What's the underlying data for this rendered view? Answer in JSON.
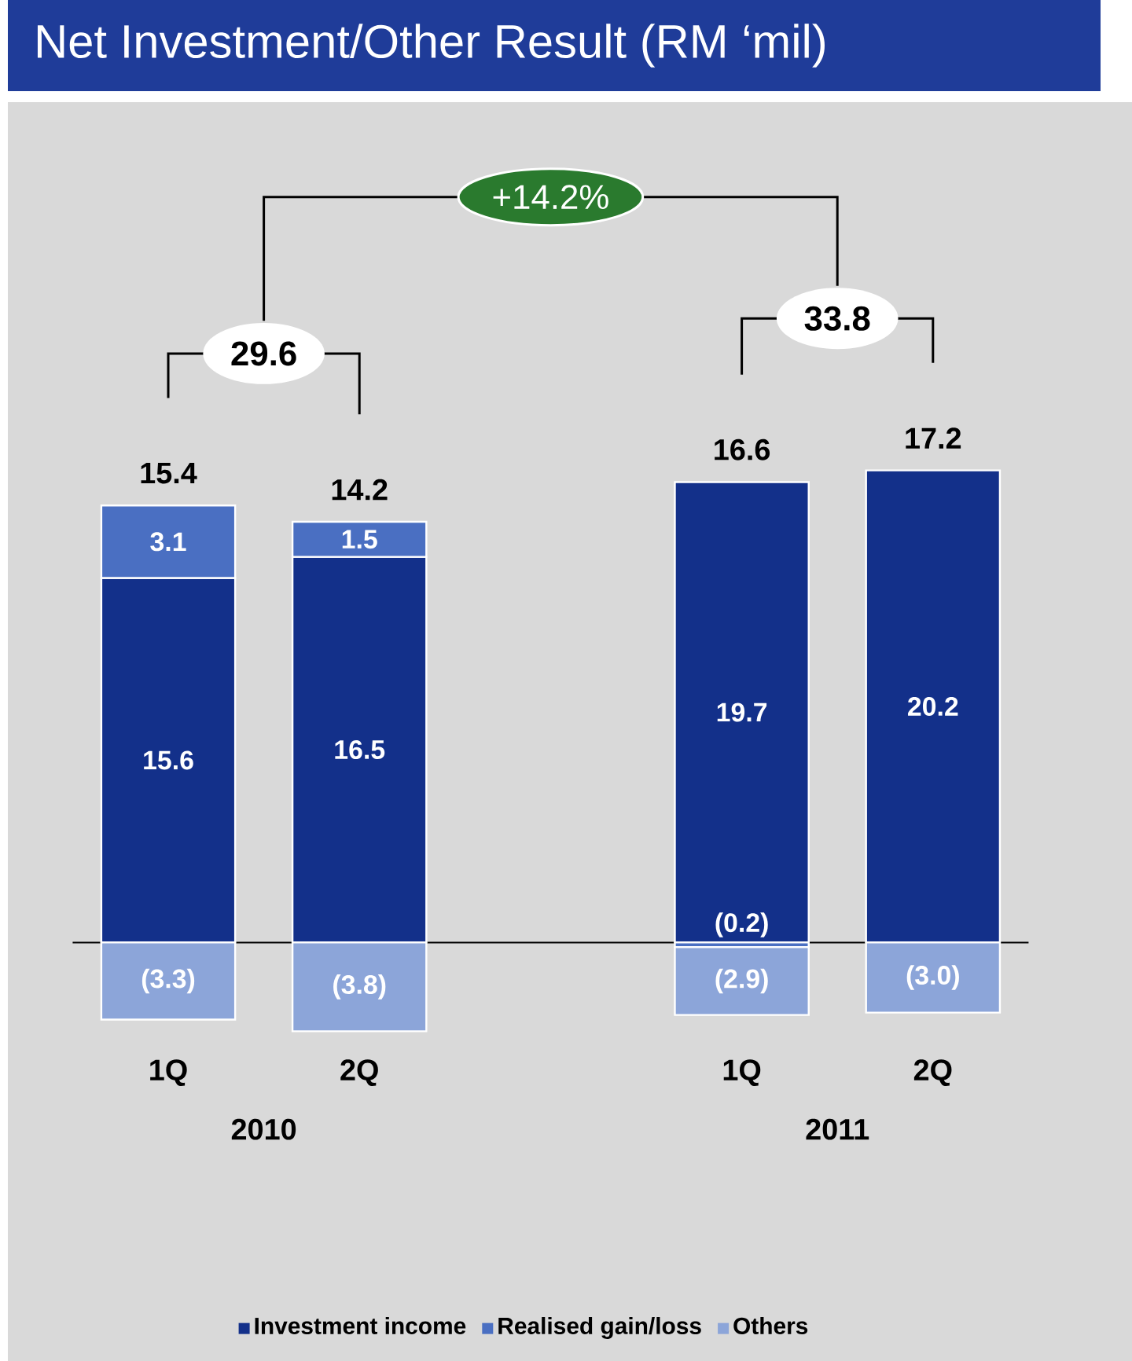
{
  "chart_data": {
    "type": "bar",
    "stacked": true,
    "title": "Net Investment/Other Result (RM ‘mil)",
    "categories": [
      "1Q",
      "2Q",
      null,
      "1Q",
      "2Q"
    ],
    "series": [
      {
        "name": "Investment income",
        "color": "#13308a",
        "values": [
          15.6,
          16.5,
          null,
          19.7,
          20.2
        ],
        "value_labels": [
          "15.6",
          "16.5",
          null,
          "19.7",
          "20.2"
        ]
      },
      {
        "name": "Realised gain/loss",
        "color": "#4a6fc2",
        "values": [
          3.1,
          1.5,
          null,
          -0.2,
          null
        ],
        "value_labels": [
          "3.1",
          "1.5",
          null,
          "(0.2)",
          null
        ]
      },
      {
        "name": "Others",
        "color": "#8ca5d9",
        "values": [
          -3.3,
          -3.8,
          null,
          -2.9,
          -3.0
        ],
        "value_labels": [
          "(3.3)",
          "(3.8)",
          null,
          "(2.9)",
          "(3.0)"
        ]
      }
    ],
    "totals": [
      "15.4",
      "14.2",
      null,
      "16.6",
      "17.2"
    ],
    "tick_labels": "x",
    "legend": "bottom",
    "annotations": [
      "29.6",
      "33.8",
      "+14.2%",
      "2010",
      "2011"
    ]
  }
}
